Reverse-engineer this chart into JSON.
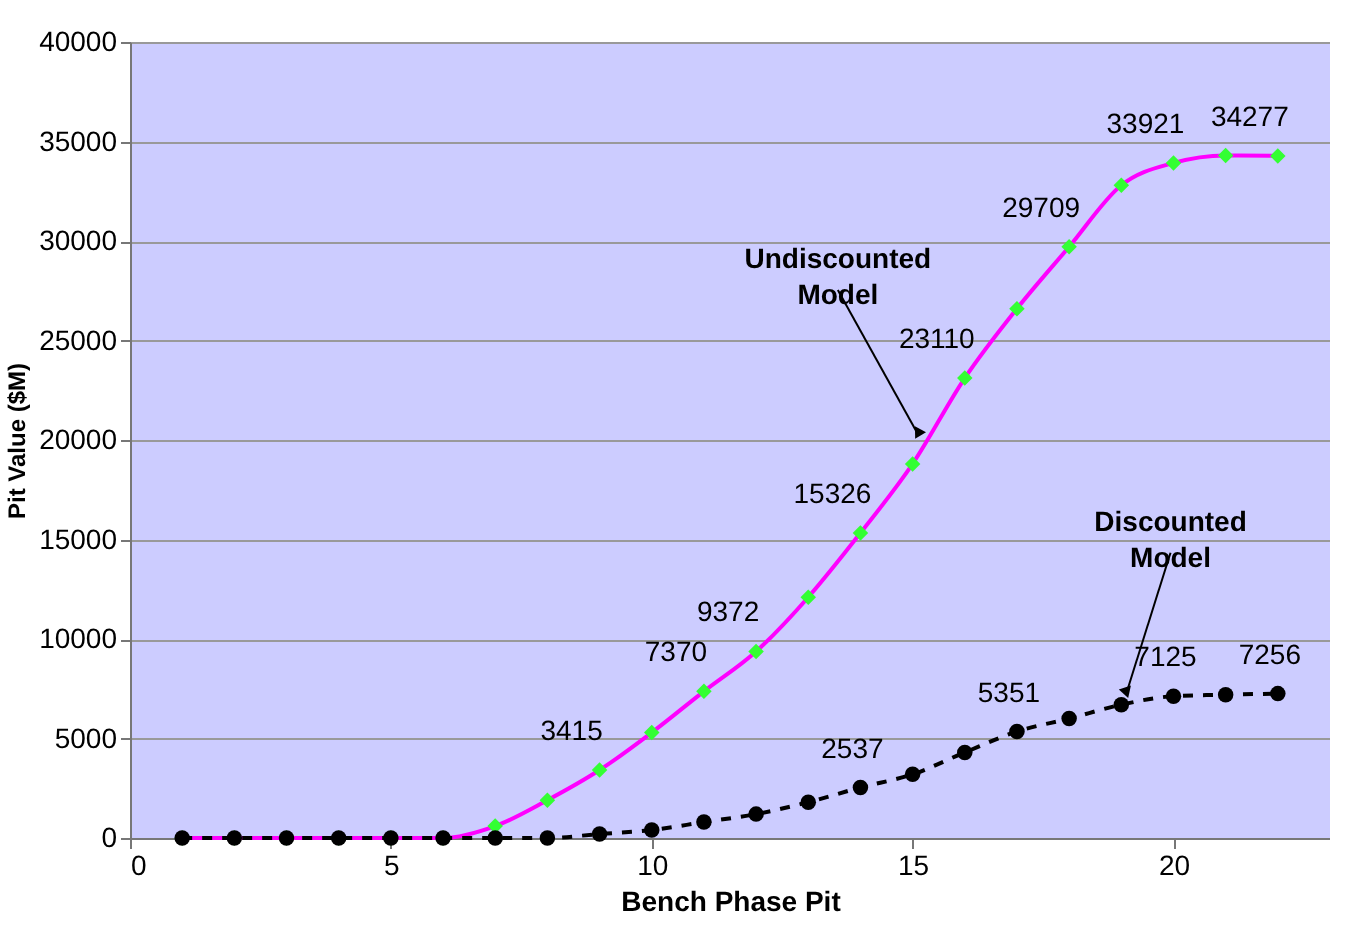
{
  "chart_data": {
    "type": "line",
    "xlabel": "Bench Phase Pit",
    "ylabel": "Pit Value ($M)",
    "x": [
      1,
      2,
      3,
      4,
      5,
      6,
      7,
      8,
      9,
      10,
      11,
      12,
      13,
      14,
      15,
      16,
      17,
      18,
      19,
      20,
      21,
      22
    ],
    "series": [
      {
        "color": "#ff00ff",
        "marker": "diamond",
        "colors": [
          "#33ff33",
          "#33ff33",
          "#33ff33",
          "#33ff33",
          "#33ff33",
          "#33ff33",
          "#33ff33",
          "#33ff33",
          "#33ff33",
          "#33ff33",
          "#33ff33",
          "#33ff33",
          "#33ff33",
          "#33ff33",
          "#33ff33",
          "#33ff33",
          "#33ff33",
          "#33ff33",
          "#33ff33",
          "#33ff33",
          "#33ff33",
          "#33ff33"
        ],
        "line_style": "solid",
        "values": [
          0,
          0,
          0,
          0,
          0,
          0,
          600,
          1900,
          3415,
          5300,
          7370,
          9372,
          12100,
          15326,
          18800,
          23110,
          26600,
          29709,
          32800,
          33921,
          34300,
          34277
        ],
        "value_labels": [
          null,
          null,
          null,
          null,
          null,
          null,
          null,
          null,
          "3415",
          null,
          "7370",
          "9372",
          null,
          "15326",
          null,
          "23110",
          null,
          "29709",
          null,
          "33921",
          null,
          "34277"
        ]
      },
      {
        "color": "#000000",
        "marker": "circle",
        "line_style": "dashed",
        "values": [
          0,
          0,
          0,
          0,
          0,
          0,
          0,
          0,
          200,
          400,
          800,
          1200,
          1800,
          2537,
          3200,
          4300,
          5351,
          6000,
          6700,
          7125,
          7200,
          7256
        ],
        "value_labels": [
          null,
          null,
          null,
          null,
          null,
          null,
          null,
          null,
          null,
          null,
          null,
          null,
          null,
          "2537",
          null,
          null,
          "5351",
          null,
          null,
          "7125",
          null,
          "7256"
        ]
      }
    ],
    "annotations": [
      {
        "text": "Undiscounted\nModel",
        "x": 15.1,
        "y": 20300
      },
      {
        "text": "Discounted\nModel",
        "x": 19.1,
        "y": 7300
      }
    ],
    "xlim": [
      0,
      23
    ],
    "xticks": [
      0,
      5,
      10,
      15,
      20
    ],
    "ylim": [
      0,
      40000
    ],
    "yticks": [
      0,
      5000,
      10000,
      15000,
      20000,
      25000,
      30000,
      35000,
      40000
    ],
    "grid": "y"
  }
}
